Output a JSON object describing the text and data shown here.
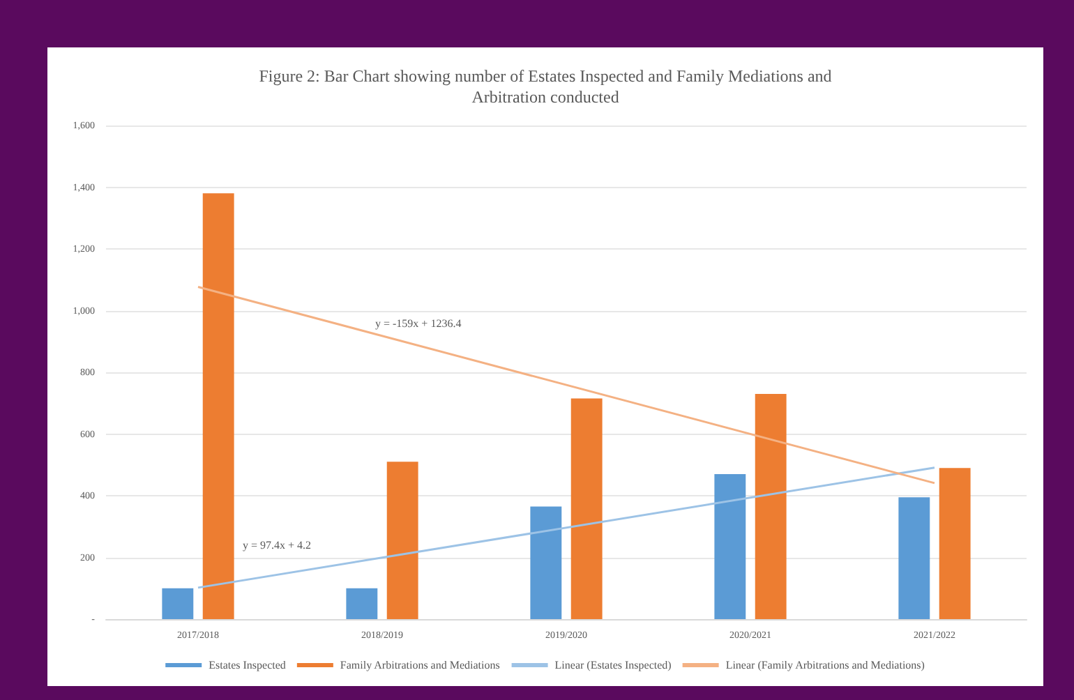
{
  "chart_data": {
    "type": "bar",
    "title": "Figure 2: Bar Chart showing number of Estates Inspected and Family Mediations and\nArbitration conducted",
    "categories": [
      "2017/2018",
      "2018/2019",
      "2019/2020",
      "2020/2021",
      "2021/2022"
    ],
    "series": [
      {
        "name": "Estates Inspected",
        "color": "#5b9bd5",
        "values": [
          100,
          100,
          365,
          470,
          395
        ]
      },
      {
        "name": "Family Arbitrations and Mediations",
        "color": "#ed7d31",
        "values": [
          1380,
          510,
          715,
          730,
          490
        ]
      },
      {
        "name": "Linear (Estates Inspected)",
        "type": "line",
        "color": "#9dc3e6",
        "x": [
          "2017/2018",
          "2021/2022"
        ],
        "values": [
          102,
          491
        ]
      },
      {
        "name": "Linear (Family Arbitrations and Mediations)",
        "type": "line",
        "color": "#f4b183",
        "x": [
          "2017/2018",
          "2021/2022"
        ],
        "values": [
          1077,
          441
        ]
      }
    ],
    "ylim": [
      0,
      1600
    ],
    "yticks": [
      {
        "value": 0,
        "label": "-"
      },
      200,
      400,
      600,
      800,
      {
        "value": 1000,
        "label": "1,000"
      },
      {
        "value": 1200,
        "label": "1,200"
      },
      {
        "value": 1400,
        "label": "1,400"
      },
      {
        "value": 1600,
        "label": "1,600"
      }
    ],
    "annotations": [
      "y = 97.4x + 4.2",
      "y = -159x + 1236.4"
    ],
    "grid": "y",
    "legend": "bottom",
    "marker": "none"
  }
}
